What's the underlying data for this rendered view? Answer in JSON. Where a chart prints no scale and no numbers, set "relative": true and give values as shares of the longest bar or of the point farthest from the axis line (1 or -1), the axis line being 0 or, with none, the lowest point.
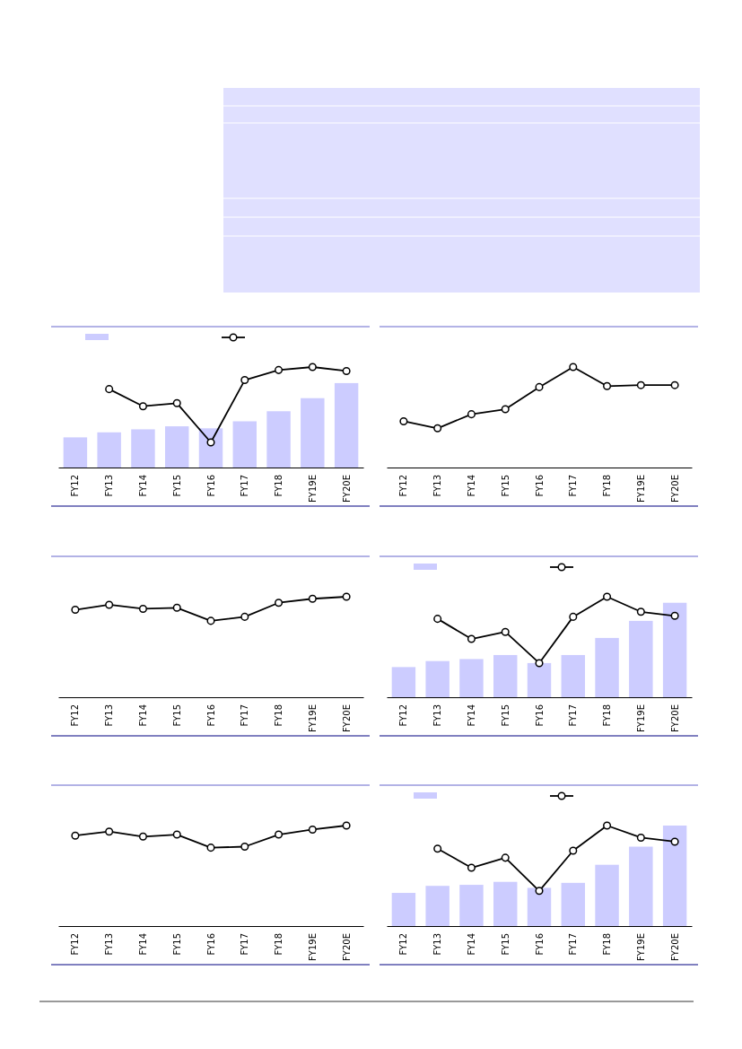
{
  "chart_data": [
    {
      "type": "bar",
      "relative": true,
      "marker": "circle",
      "categories": [
        "FY12",
        "FY13",
        "FY14",
        "FY15",
        "FY16",
        "FY17",
        "FY18",
        "FY19E",
        "FY20E"
      ],
      "series": [
        {
          "color": "#ccccff",
          "values": [
            0.3,
            0.35,
            0.38,
            0.41,
            0.39,
            0.46,
            0.56,
            0.69,
            0.84
          ]
        },
        {
          "type": "line",
          "color": "#000000",
          "values": [
            null,
            0.78,
            0.61,
            0.64,
            0.25,
            0.87,
            0.97,
            1,
            0.96
          ]
        }
      ]
    },
    {
      "type": "line",
      "relative": true,
      "marker": "circle",
      "categories": [
        "FY12",
        "FY13",
        "FY14",
        "FY15",
        "FY16",
        "FY17",
        "FY18",
        "FY19E",
        "FY20E"
      ],
      "series": [
        {
          "color": "#000000",
          "values": [
            0.46,
            0.39,
            0.53,
            0.58,
            0.8,
            1,
            0.81,
            0.82,
            0.82
          ]
        }
      ]
    },
    {
      "type": "line",
      "relative": true,
      "marker": "circle",
      "categories": [
        "FY12",
        "FY13",
        "FY14",
        "FY15",
        "FY16",
        "FY17",
        "FY18",
        "FY19E",
        "FY20E"
      ],
      "series": [
        {
          "color": "#000000",
          "values": [
            0.87,
            0.92,
            0.88,
            0.89,
            0.76,
            0.8,
            0.94,
            0.98,
            1
          ]
        }
      ]
    },
    {
      "type": "bar",
      "relative": true,
      "marker": "circle",
      "categories": [
        "FY12",
        "FY13",
        "FY14",
        "FY15",
        "FY16",
        "FY17",
        "FY18",
        "FY19E",
        "FY20E"
      ],
      "series": [
        {
          "color": "#ccccff",
          "values": [
            0.3,
            0.36,
            0.38,
            0.42,
            0.34,
            0.42,
            0.59,
            0.76,
            0.94
          ]
        },
        {
          "type": "line",
          "color": "#000000",
          "values": [
            null,
            0.78,
            0.58,
            0.65,
            0.34,
            0.8,
            1,
            0.85,
            0.81
          ]
        }
      ]
    },
    {
      "type": "line",
      "relative": true,
      "marker": "circle",
      "categories": [
        "FY12",
        "FY13",
        "FY14",
        "FY15",
        "FY16",
        "FY17",
        "FY18",
        "FY19E",
        "FY20E"
      ],
      "series": [
        {
          "color": "#000000",
          "values": [
            0.9,
            0.94,
            0.89,
            0.91,
            0.78,
            0.79,
            0.91,
            0.96,
            1
          ]
        }
      ]
    },
    {
      "type": "bar",
      "relative": true,
      "marker": "circle",
      "categories": [
        "FY12",
        "FY13",
        "FY14",
        "FY15",
        "FY16",
        "FY17",
        "FY18",
        "FY19E",
        "FY20E"
      ],
      "series": [
        {
          "color": "#ccccff",
          "values": [
            0.33,
            0.4,
            0.41,
            0.44,
            0.38,
            0.43,
            0.61,
            0.79,
            1
          ]
        },
        {
          "type": "line",
          "color": "#000000",
          "values": [
            null,
            0.77,
            0.58,
            0.68,
            0.35,
            0.75,
            1,
            0.88,
            0.84
          ]
        }
      ]
    }
  ]
}
